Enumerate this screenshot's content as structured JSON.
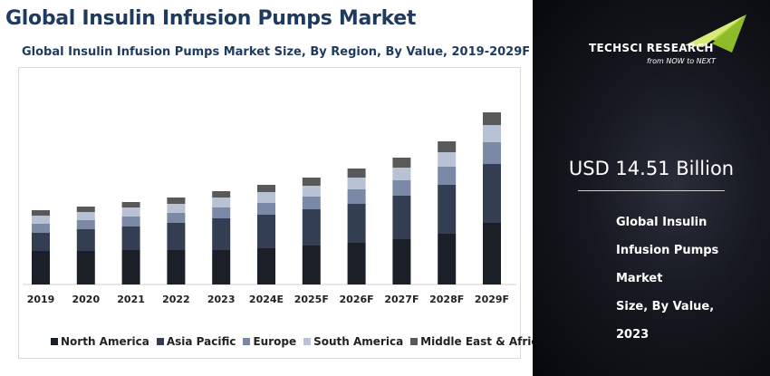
{
  "title": "Global Insulin Infusion Pumps Market",
  "subtitle": "Global Insulin Infusion Pumps Market Size, By Region, By Value, 2019-2029F",
  "chart_data": {
    "type": "bar",
    "stacked": true,
    "categories": [
      "2019",
      "2020",
      "2021",
      "2022",
      "2023",
      "2024E",
      "2025F",
      "2026F",
      "2027F",
      "2028F",
      "2029F"
    ],
    "series": [
      {
        "name": "North America",
        "color": "#1b1f28",
        "values": [
          37,
          37,
          38,
          38,
          38,
          40,
          43,
          46,
          50,
          56,
          68
        ]
      },
      {
        "name": "Asia Pacific",
        "color": "#343e52",
        "values": [
          20,
          24,
          26,
          30,
          35,
          37,
          40,
          43,
          48,
          54,
          65
        ]
      },
      {
        "name": "Europe",
        "color": "#7a89a6",
        "values": [
          10,
          10,
          11,
          11,
          12,
          13,
          14,
          16,
          17,
          20,
          24
        ]
      },
      {
        "name": "South America",
        "color": "#b9c2d4",
        "values": [
          9,
          9,
          10,
          10,
          11,
          12,
          12,
          13,
          14,
          16,
          19
        ]
      },
      {
        "name": "Middle East & Africa",
        "color": "#595959",
        "values": [
          6,
          6,
          6,
          7,
          7,
          8,
          9,
          10,
          11,
          12,
          14
        ]
      }
    ],
    "legend_position": "bottom",
    "grid": false,
    "ylim": [
      0,
      200
    ]
  },
  "brand": {
    "name": "TECHSCI RESEARCH",
    "tagline": "from NOW to NEXT"
  },
  "highlight": {
    "value": "USD 14.51 Billion",
    "lines": [
      "Global Insulin",
      "Infusion Pumps",
      "Market",
      "Size, By Value,",
      "2023"
    ]
  }
}
